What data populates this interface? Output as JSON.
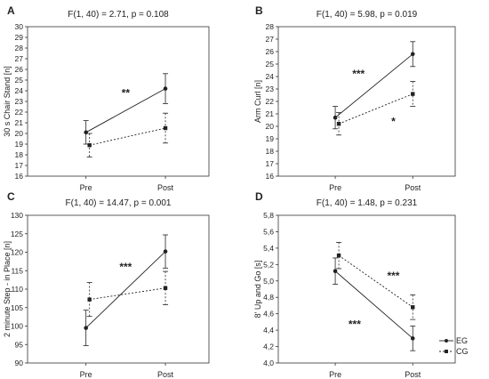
{
  "chart_data": [
    {
      "type": "line",
      "panel_letter": "A",
      "title": "F(1, 40) = 2.71, p = 0.108",
      "ylabel": "30 s Chair Stand [n]",
      "xlabel": "",
      "categories": [
        "Pre",
        "Post"
      ],
      "ylim": [
        16,
        30
      ],
      "yticks": [
        "16",
        "17",
        "18",
        "19",
        "20",
        "21",
        "22",
        "23",
        "24",
        "25",
        "26",
        "27",
        "28",
        "29",
        "30"
      ],
      "grid": false,
      "series": [
        {
          "name": "EG",
          "values": [
            20.1,
            24.2
          ],
          "error": [
            1.1,
            1.4
          ],
          "style": "solid",
          "marker": "circle"
        },
        {
          "name": "CG",
          "values": [
            18.9,
            20.5
          ],
          "error": [
            1.1,
            1.4
          ],
          "style": "dotted",
          "marker": "square"
        }
      ],
      "annotations": [
        {
          "text": "**",
          "x": 0.5,
          "y": 23.8
        }
      ]
    },
    {
      "type": "line",
      "panel_letter": "B",
      "title": "F(1, 40) = 5.98, p = 0.019",
      "ylabel": "Arm Curl [n]",
      "xlabel": "",
      "categories": [
        "Pre",
        "Post"
      ],
      "ylim": [
        16,
        28
      ],
      "yticks": [
        "16",
        "17",
        "18",
        "19",
        "20",
        "21",
        "22",
        "23",
        "24",
        "25",
        "26",
        "27",
        "28"
      ],
      "grid": false,
      "series": [
        {
          "name": "EG",
          "values": [
            20.7,
            25.8
          ],
          "error": [
            0.9,
            1.0
          ],
          "style": "solid",
          "marker": "circle"
        },
        {
          "name": "CG",
          "values": [
            20.2,
            22.6
          ],
          "error": [
            0.9,
            1.0
          ],
          "style": "dotted",
          "marker": "square"
        }
      ],
      "annotations": [
        {
          "text": "***",
          "x": 0.3,
          "y": 24.2
        },
        {
          "text": "*",
          "x": 0.75,
          "y": 20.4
        }
      ]
    },
    {
      "type": "line",
      "panel_letter": "C",
      "title": "F(1, 40) = 14.47, p = 0.001",
      "ylabel": "2 minute Step - in Place [n]",
      "xlabel": "",
      "categories": [
        "Pre",
        "Post"
      ],
      "ylim": [
        90,
        130
      ],
      "yticks": [
        "90",
        "95",
        "100",
        "105",
        "110",
        "115",
        "120",
        "125",
        "130"
      ],
      "grid": false,
      "series": [
        {
          "name": "EG",
          "values": [
            99.5,
            120.2
          ],
          "error": [
            4.8,
            4.5
          ],
          "style": "solid",
          "marker": "circle"
        },
        {
          "name": "CG",
          "values": [
            107.2,
            110.3
          ],
          "error": [
            4.6,
            4.5
          ],
          "style": "dotted",
          "marker": "square"
        }
      ],
      "annotations": [
        {
          "text": "***",
          "x": 0.5,
          "y": 116.0
        }
      ]
    },
    {
      "type": "line",
      "panel_letter": "D",
      "title": "F(1, 40) = 1.48, p = 0.231",
      "ylabel": "8' Up and Go [s]",
      "xlabel": "",
      "categories": [
        "Pre",
        "Post"
      ],
      "ylim": [
        4.0,
        5.8
      ],
      "yticks": [
        "4,0",
        "4,2",
        "4,4",
        "4,6",
        "4,8",
        "5,0",
        "5,2",
        "5,4",
        "5,6",
        "5,8"
      ],
      "grid": false,
      "series": [
        {
          "name": "EG",
          "values": [
            5.12,
            4.3
          ],
          "error": [
            0.16,
            0.15
          ],
          "style": "solid",
          "marker": "circle"
        },
        {
          "name": "CG",
          "values": [
            5.31,
            4.68
          ],
          "error": [
            0.16,
            0.15
          ],
          "style": "dotted",
          "marker": "square"
        }
      ],
      "annotations": [
        {
          "text": "***",
          "x": 0.75,
          "y": 5.06
        },
        {
          "text": "***",
          "x": 0.25,
          "y": 4.47
        }
      ]
    }
  ],
  "legend": {
    "position": "bottom-right",
    "entries": [
      {
        "label": "EG",
        "style": "solid",
        "marker": "circle"
      },
      {
        "label": "CG",
        "style": "dotted",
        "marker": "square"
      }
    ]
  },
  "colors": {
    "ink": "#222222",
    "axis": "#333333"
  }
}
